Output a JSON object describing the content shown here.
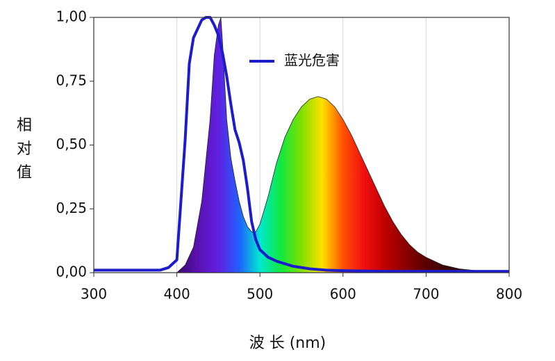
{
  "chart_data": {
    "type": "line",
    "ylabel": "相对值",
    "xlabel": "波 长 (nm)",
    "xlim": [
      300,
      800
    ],
    "ylim": [
      0,
      1
    ],
    "xticks": [
      300,
      400,
      500,
      600,
      700,
      800
    ],
    "yticks": [
      {
        "value": 0,
        "label": "0,00"
      },
      {
        "value": 0.25,
        "label": "0,25"
      },
      {
        "value": 0.5,
        "label": "0,50"
      },
      {
        "value": 0.75,
        "label": "0,75"
      },
      {
        "value": 1,
        "label": "1,00"
      }
    ],
    "grid": "x",
    "legend": "upper center",
    "series": [
      {
        "type": "area",
        "gradient": [
          "#3a0a6a",
          "#5a10b0",
          "#6020e0",
          "#2060ff",
          "#00e8d0",
          "#10e840",
          "#80e000",
          "#ffe000",
          "#ff5000",
          "#f01010",
          "#c00000",
          "#8a0000",
          "#5a0000",
          "#3a0808",
          "#2a1010",
          "#200c0c",
          "#180808"
        ],
        "x": [
          400,
          410,
          420,
          430,
          440,
          445,
          450,
          453,
          455,
          460,
          465,
          470,
          475,
          480,
          485,
          490,
          495,
          500,
          510,
          520,
          530,
          540,
          550,
          560,
          570,
          580,
          590,
          600,
          610,
          620,
          630,
          640,
          650,
          660,
          670,
          680,
          690,
          700,
          720,
          740,
          760,
          780,
          800
        ],
        "values": [
          0,
          0.03,
          0.1,
          0.28,
          0.6,
          0.85,
          0.97,
          1.0,
          0.9,
          0.6,
          0.45,
          0.36,
          0.28,
          0.22,
          0.18,
          0.16,
          0.16,
          0.19,
          0.3,
          0.43,
          0.53,
          0.6,
          0.65,
          0.68,
          0.69,
          0.68,
          0.65,
          0.6,
          0.54,
          0.47,
          0.4,
          0.33,
          0.26,
          0.2,
          0.15,
          0.11,
          0.08,
          0.06,
          0.03,
          0.015,
          0.008,
          0.003,
          0
        ]
      },
      {
        "name": "蓝光危害",
        "color": "#1c1ccc",
        "x": [
          300,
          340,
          380,
          390,
          400,
          410,
          415,
          420,
          430,
          435,
          440,
          445,
          450,
          455,
          460,
          465,
          470,
          475,
          480,
          485,
          490,
          495,
          500,
          510,
          520,
          530,
          540,
          550,
          560,
          580,
          600,
          650,
          700,
          750,
          800
        ],
        "values": [
          0.01,
          0.01,
          0.01,
          0.02,
          0.05,
          0.52,
          0.82,
          0.92,
          0.99,
          1.0,
          1.0,
          0.97,
          0.93,
          0.86,
          0.77,
          0.66,
          0.56,
          0.51,
          0.44,
          0.33,
          0.2,
          0.13,
          0.09,
          0.06,
          0.045,
          0.035,
          0.025,
          0.02,
          0.015,
          0.01,
          0.008,
          0.005,
          0.005,
          0.005,
          0.005
        ]
      }
    ]
  }
}
